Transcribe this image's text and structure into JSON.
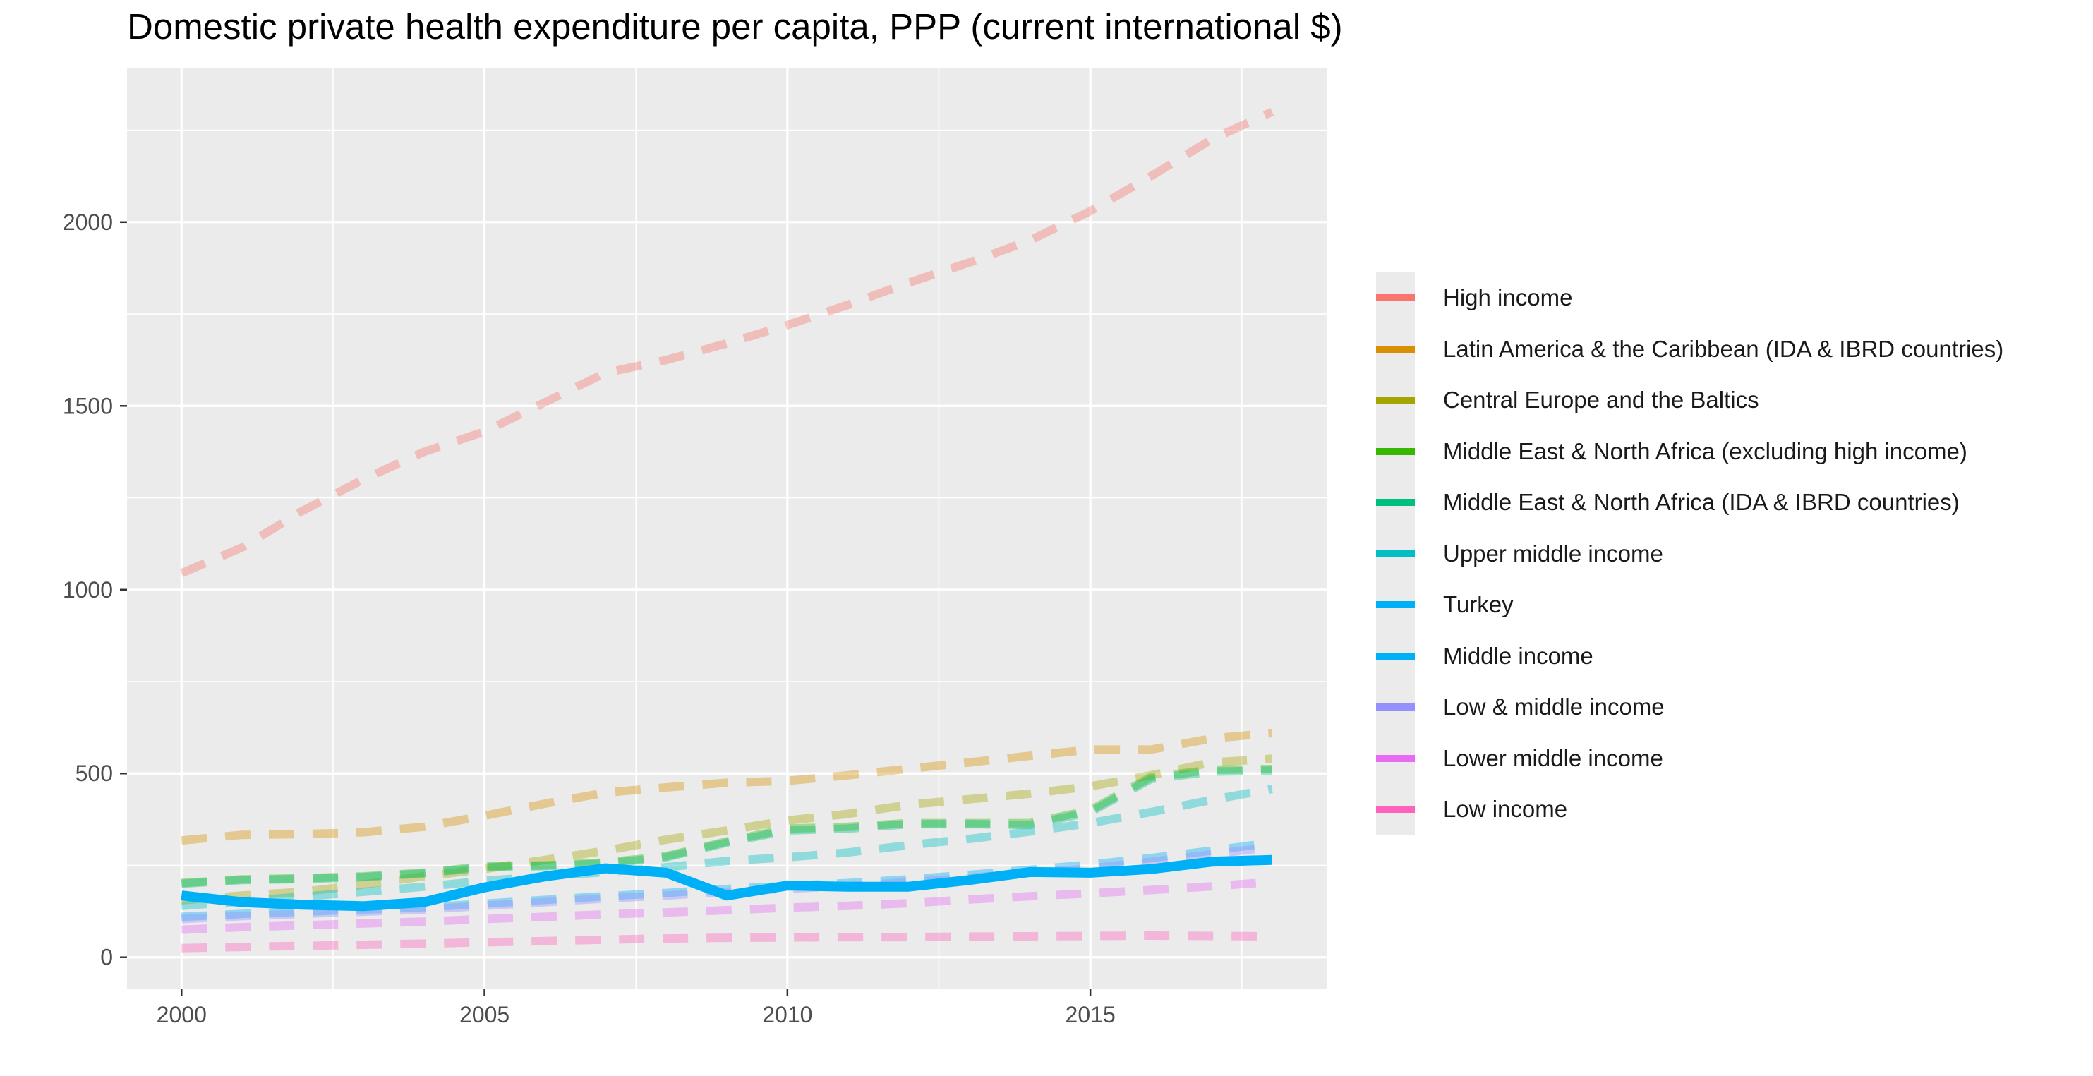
{
  "chart_data": {
    "type": "line",
    "title": "Domestic private health expenditure per capita, PPP (current international $)",
    "xlabel": "",
    "ylabel": "",
    "xlim": [
      1999.1,
      2018.9
    ],
    "ylim": [
      -85,
      2420
    ],
    "x_ticks": [
      2000,
      2005,
      2010,
      2015
    ],
    "y_ticks": [
      0,
      500,
      1000,
      1500,
      2000
    ],
    "grid": true,
    "legend_position": "right",
    "x": [
      2000,
      2001,
      2002,
      2003,
      2004,
      2005,
      2006,
      2007,
      2008,
      2009,
      2010,
      2011,
      2012,
      2013,
      2014,
      2015,
      2016,
      2017,
      2018
    ],
    "series": [
      {
        "name": "High income",
        "color": "#F8766D",
        "style": "dashed",
        "values": [
          1045,
          1115,
          1215,
          1300,
          1375,
          1430,
          1510,
          1590,
          1625,
          1670,
          1720,
          1775,
          1835,
          1890,
          1950,
          2030,
          2125,
          2225,
          2300
        ]
      },
      {
        "name": "Latin America & the Caribbean (IDA & IBRD countries)",
        "color": "#D89000",
        "style": "dashed",
        "values": [
          318,
          333,
          335,
          340,
          355,
          385,
          418,
          448,
          462,
          475,
          480,
          495,
          513,
          530,
          548,
          565,
          565,
          595,
          610
        ]
      },
      {
        "name": "Central Europe and the Baltics",
        "color": "#A3A500",
        "style": "dashed",
        "values": [
          155,
          168,
          178,
          198,
          220,
          240,
          265,
          290,
          320,
          345,
          372,
          390,
          415,
          430,
          445,
          465,
          495,
          530,
          540
        ]
      },
      {
        "name": "Middle East & North Africa (excluding high income)",
        "color": "#39B600",
        "style": "dashed",
        "values": [
          202,
          212,
          215,
          220,
          230,
          248,
          250,
          258,
          275,
          315,
          350,
          355,
          365,
          365,
          365,
          400,
          490,
          510,
          512
        ]
      },
      {
        "name": "Middle East & North Africa (IDA & IBRD countries)",
        "color": "#00BF7D",
        "style": "dashed",
        "values": [
          200,
          210,
          213,
          218,
          228,
          245,
          248,
          255,
          272,
          312,
          345,
          350,
          362,
          362,
          360,
          395,
          485,
          505,
          508
        ]
      },
      {
        "name": "Upper middle income",
        "color": "#00BFC4",
        "style": "dashed",
        "values": [
          140,
          152,
          165,
          178,
          192,
          208,
          220,
          232,
          245,
          262,
          272,
          285,
          305,
          322,
          342,
          365,
          395,
          428,
          458
        ]
      },
      {
        "name": "Turkey",
        "color": "#00B0F6",
        "style": "solid",
        "values": [
          168,
          150,
          143,
          139,
          150,
          190,
          220,
          242,
          230,
          168,
          195,
          192,
          192,
          210,
          232,
          230,
          240,
          260,
          265
        ]
      },
      {
        "name": "Middle income",
        "color": "#00B0F6",
        "style": "dashed",
        "values": [
          110,
          118,
          124,
          130,
          136,
          146,
          156,
          166,
          175,
          186,
          194,
          202,
          212,
          224,
          238,
          252,
          270,
          290,
          312
        ]
      },
      {
        "name": "Low & middle income",
        "color": "#9590FF",
        "style": "dashed",
        "values": [
          104,
          112,
          118,
          124,
          130,
          140,
          150,
          160,
          168,
          178,
          186,
          194,
          204,
          216,
          230,
          242,
          260,
          280,
          300
        ]
      },
      {
        "name": "Lower middle income",
        "color": "#E76BF3",
        "style": "dashed",
        "values": [
          75,
          82,
          87,
          92,
          97,
          104,
          110,
          117,
          122,
          128,
          135,
          140,
          147,
          157,
          166,
          174,
          183,
          193,
          205
        ]
      },
      {
        "name": "Low income",
        "color": "#FF62BC",
        "style": "dashed",
        "values": [
          25,
          28,
          31,
          34,
          37,
          41,
          44,
          48,
          51,
          53,
          54,
          55,
          55,
          56,
          57,
          58,
          59,
          58,
          57
        ]
      }
    ]
  }
}
